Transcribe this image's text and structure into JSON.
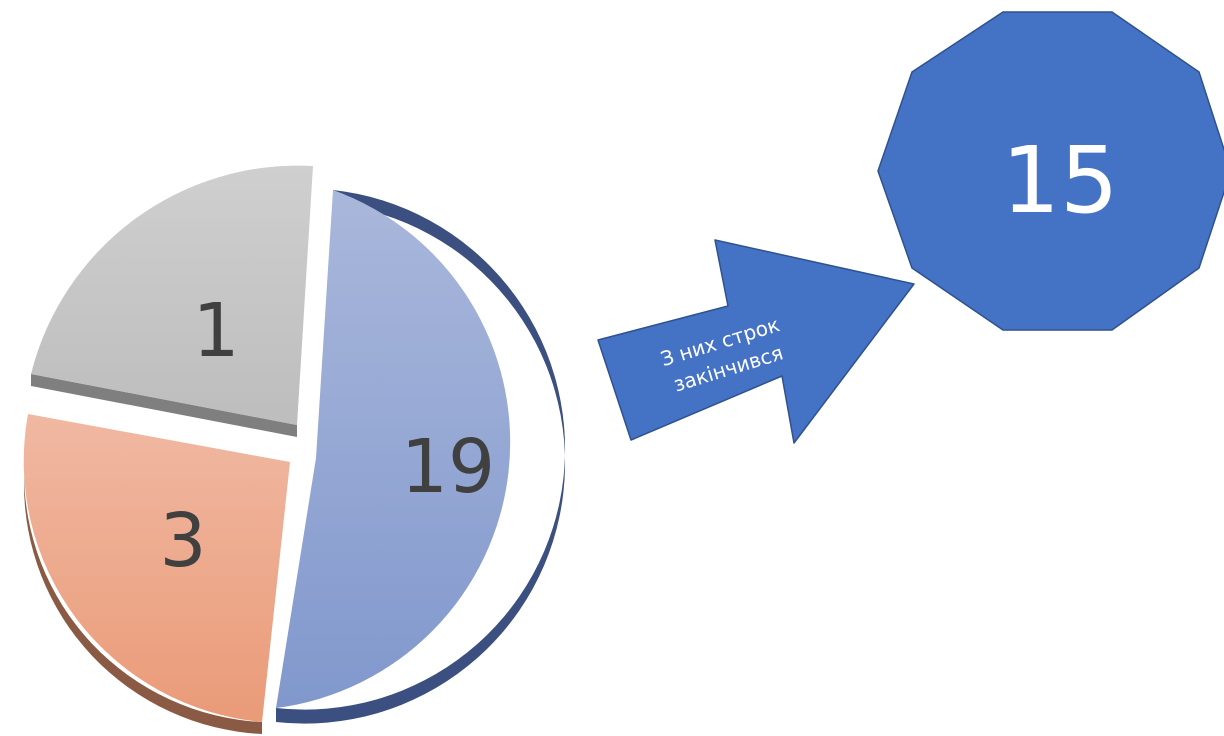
{
  "chart_data": {
    "type": "pie",
    "title": "",
    "slices": [
      {
        "label": "1",
        "value": 1,
        "color": "#c4c4c4"
      },
      {
        "label": "3",
        "value": 3,
        "color": "#eea98c"
      },
      {
        "label": "19",
        "value": 19,
        "color": "#94a6d4"
      }
    ],
    "exploded": true,
    "style": "3d-tilted"
  },
  "arrow": {
    "line1": "З них строк",
    "line2": "закінчився",
    "color": "#4472c4"
  },
  "callout": {
    "value": "15",
    "shape": "decagon",
    "color": "#4472c4"
  }
}
